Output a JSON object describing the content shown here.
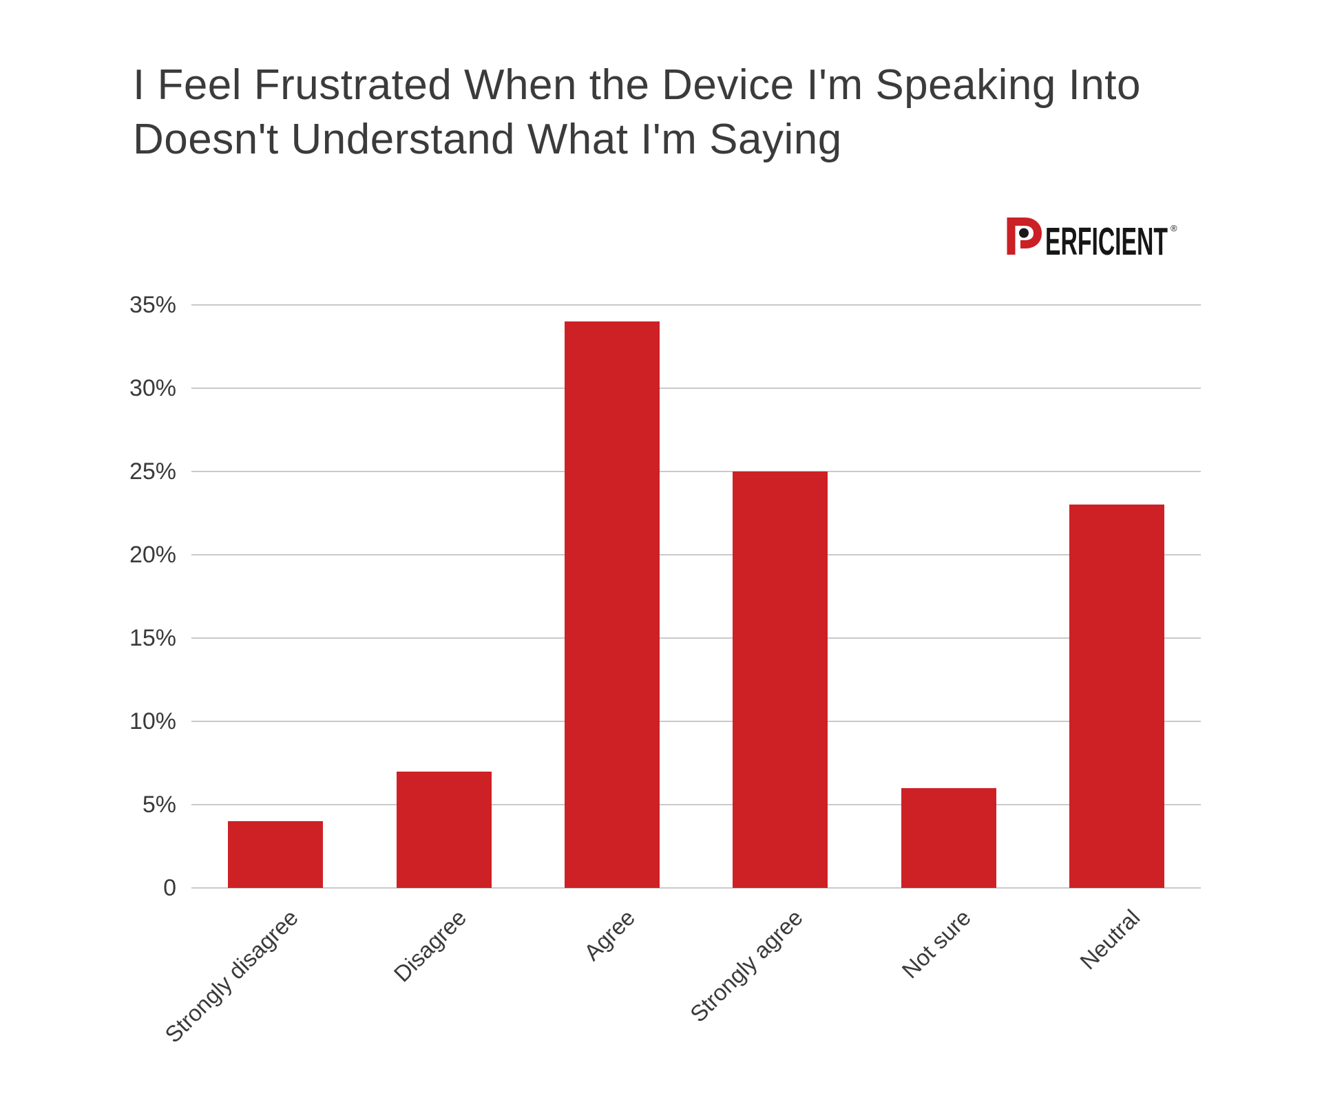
{
  "title": {
    "line1": "I Feel Frustrated When the Device I'm Speaking Into",
    "line2": "Doesn't Understand What I'm Saying"
  },
  "logo": {
    "brand": "PERFICIENT",
    "mark_letter": "P",
    "rest": "ERFICIENT",
    "registered": "®"
  },
  "colors": {
    "bar": "#cd2126",
    "logo_red": "#cb2026",
    "logo_text": "#161616",
    "grid": "#c9c9c9",
    "title_text": "#3b3b3b",
    "axis_text": "#3a3a3a",
    "background": "#ffffff"
  },
  "chart_data": {
    "type": "bar",
    "title": "I Feel Frustrated When the Device I'm Speaking Into Doesn't Understand What I'm Saying",
    "categories": [
      "Strongly disagree",
      "Disagree",
      "Agree",
      "Strongly agree",
      "Not sure",
      "Neutral"
    ],
    "values": [
      4,
      7,
      34,
      25,
      6,
      23
    ],
    "unit": "%",
    "xlabel": "",
    "ylabel": "",
    "ylim": [
      0,
      35
    ],
    "yticks": [
      {
        "value": 0,
        "label": "0"
      },
      {
        "value": 5,
        "label": "5%"
      },
      {
        "value": 10,
        "label": "10%"
      },
      {
        "value": 15,
        "label": "15%"
      },
      {
        "value": 20,
        "label": "20%"
      },
      {
        "value": 25,
        "label": "25%"
      },
      {
        "value": 30,
        "label": "30%"
      },
      {
        "value": 35,
        "label": "35%"
      }
    ],
    "grid": true,
    "legend": false,
    "bar_color": "#cd2126",
    "x_label_rotation_deg": -45
  }
}
